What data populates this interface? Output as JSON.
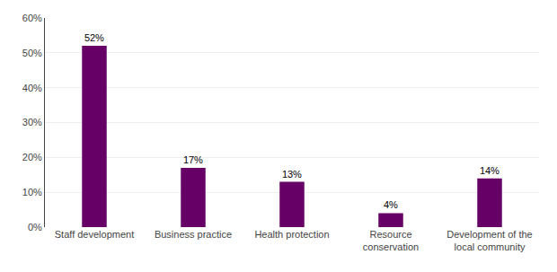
{
  "chart_data": {
    "type": "bar",
    "categories": [
      "Staff development",
      "Business practice",
      "Health protection",
      "Resource\nconservation",
      "Development of the\nlocal community"
    ],
    "values": [
      52,
      17,
      13,
      4,
      14
    ],
    "value_labels": [
      "52%",
      "17%",
      "13%",
      "4%",
      "14%"
    ],
    "color": "#660066",
    "ylim": [
      0,
      60
    ],
    "yticks": [
      {
        "value": 0,
        "label": "0%"
      },
      {
        "value": 10,
        "label": "10%"
      },
      {
        "value": 20,
        "label": "20%"
      },
      {
        "value": 30,
        "label": "30%"
      },
      {
        "value": 40,
        "label": "40%"
      },
      {
        "value": 50,
        "label": "50%"
      },
      {
        "value": 60,
        "label": "60%"
      }
    ],
    "grid": true
  }
}
